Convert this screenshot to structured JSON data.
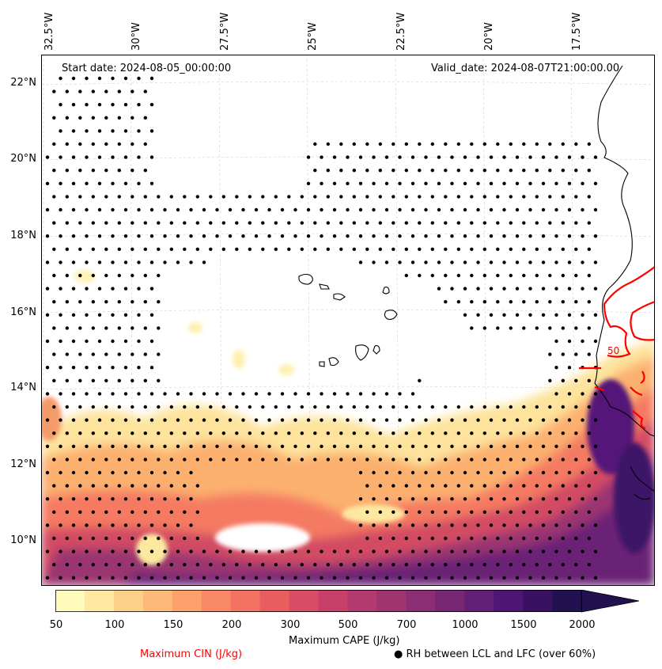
{
  "header": {
    "start_date": "Start date: 2024-08-05_00:00:00",
    "valid_date": "Valid_date: 2024-08-07T21:00:00.00"
  },
  "axes": {
    "longitudes": [
      "32.5°W",
      "30°W",
      "27.5°W",
      "25°W",
      "22.5°W",
      "20°W",
      "17.5°W"
    ],
    "latitudes": [
      "22°N",
      "20°N",
      "18°N",
      "16°N",
      "14°N",
      "12°N",
      "10°N"
    ]
  },
  "colorbar": {
    "label": "Maximum CAPE (J/kg)",
    "ticks": [
      "50",
      "100",
      "150",
      "200",
      "300",
      "500",
      "700",
      "1000",
      "1500",
      "2000"
    ],
    "colors": [
      "#fffbbd",
      "#fee8a2",
      "#fdd08a",
      "#fdb97a",
      "#fca16c",
      "#f98866",
      "#f37362",
      "#e85e5e",
      "#d84d63",
      "#c7406a",
      "#b23a6e",
      "#9e3571",
      "#8b2e73",
      "#782775",
      "#641f76",
      "#4f1775",
      "#3a1160",
      "#221150"
    ]
  },
  "legend": {
    "cin_label": "Maximum CIN (J/kg)",
    "cin_color": "#ff0000",
    "rh_label": "RH between LCL and LFC (over 60%)",
    "rh_marker": "●"
  },
  "map": {
    "cin_contour_label": "50"
  }
}
